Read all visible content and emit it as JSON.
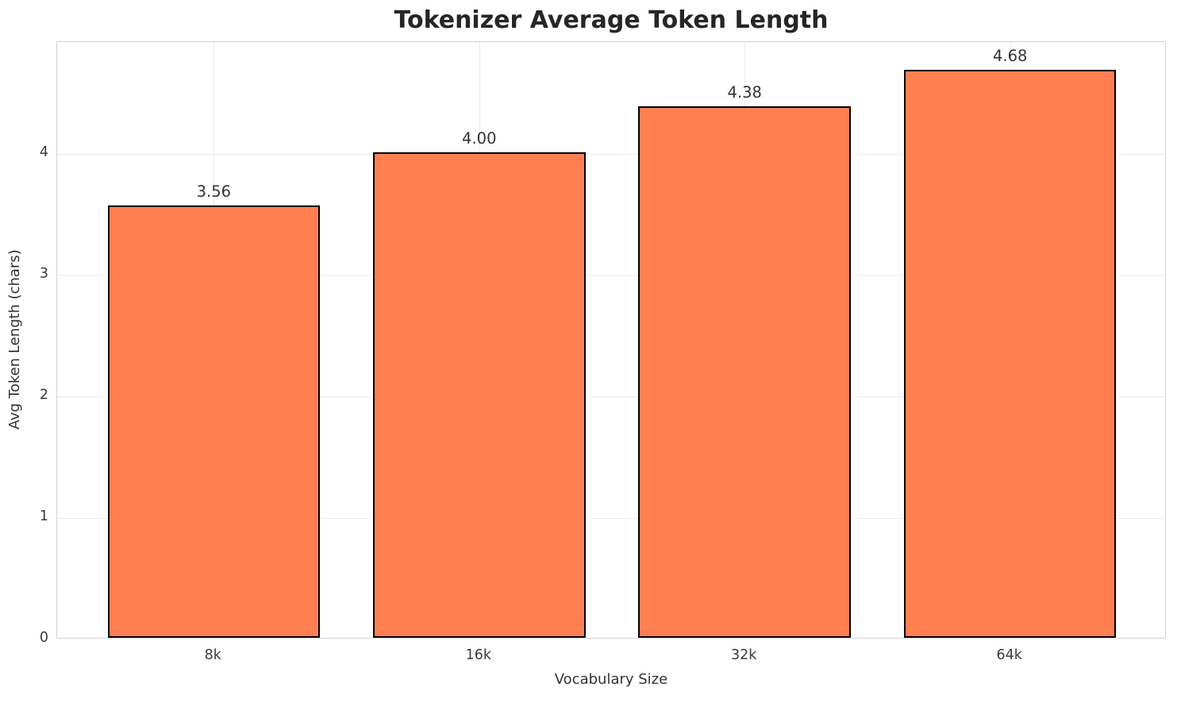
{
  "chart_data": {
    "type": "bar",
    "title": "Tokenizer Average Token Length",
    "xlabel": "Vocabulary Size",
    "ylabel": "Avg Token Length (chars)",
    "categories": [
      "8k",
      "16k",
      "32k",
      "64k"
    ],
    "values": [
      3.56,
      4.0,
      4.38,
      4.68
    ],
    "value_labels": [
      "3.56",
      "4.00",
      "4.38",
      "4.68"
    ],
    "yticks": [
      0,
      1,
      2,
      3,
      4
    ],
    "ylim": [
      0,
      4.92
    ],
    "xlim": [
      -0.59,
      3.59
    ],
    "bar_width": 0.8,
    "bar_color": "#FF7F50",
    "bar_edge_color": "#000000",
    "grid": true,
    "legend_position": "none"
  }
}
